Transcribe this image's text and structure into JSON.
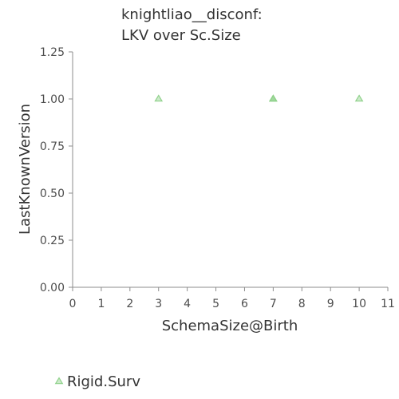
{
  "chart_data": {
    "type": "scatter",
    "title": [
      "knightliao__disconf:",
      "LKV over Sc.Size"
    ],
    "xlabel": "SchemaSize@Birth",
    "ylabel": "LastKnownVersion",
    "xlim": [
      0,
      11
    ],
    "ylim": [
      0,
      1.25
    ],
    "x_ticks": [
      "0",
      "1",
      "2",
      "3",
      "4",
      "5",
      "6",
      "7",
      "8",
      "9",
      "10",
      "11"
    ],
    "y_ticks": [
      "0.00",
      "0.25",
      "0.50",
      "0.75",
      "1.00",
      "1.25"
    ],
    "grid": false,
    "legend_position": "bottom-left",
    "series": [
      {
        "name": "Rigid.Surv",
        "marker": "triangle",
        "color": "#8fd18a",
        "points": [
          {
            "x": 3,
            "y": 1.0
          },
          {
            "x": 7,
            "y": 1.0
          },
          {
            "x": 7,
            "y": 1.0
          },
          {
            "x": 7,
            "y": 1.0
          },
          {
            "x": 10,
            "y": 1.0
          }
        ]
      }
    ]
  }
}
